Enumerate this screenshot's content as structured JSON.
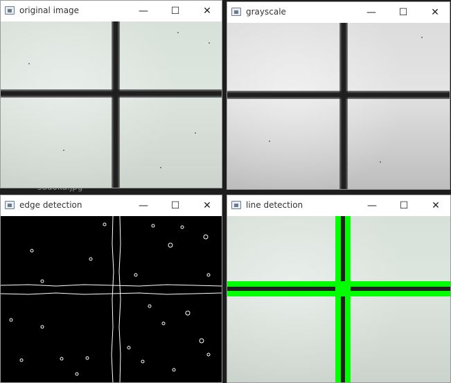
{
  "background": {
    "file_label": "sudoku.jpg"
  },
  "windows": {
    "original": {
      "title": "original image"
    },
    "grayscale": {
      "title": "grayscale"
    },
    "edges": {
      "title": "edge detection"
    },
    "lines": {
      "title": "line detection"
    }
  },
  "controls": {
    "minimize": "—",
    "maximize": "☐",
    "close": "✕"
  },
  "colors": {
    "detected_line": "#00ff00",
    "edge": "#ffffff",
    "edge_bg": "#000000"
  },
  "icons": {
    "app": "window-app-icon"
  }
}
